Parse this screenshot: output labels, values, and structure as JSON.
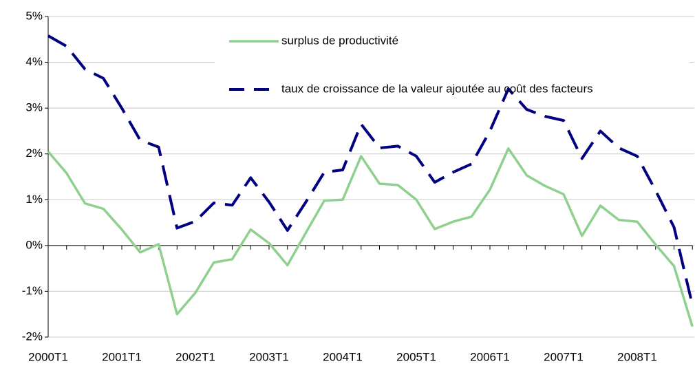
{
  "chart_data": {
    "type": "line",
    "categories": [
      "2000T1",
      null,
      null,
      null,
      "2001T1",
      null,
      null,
      null,
      "2002T1",
      null,
      null,
      null,
      "2003T1",
      null,
      null,
      null,
      "2004T1",
      null,
      null,
      null,
      "2005T1",
      null,
      null,
      null,
      "2006T1",
      null,
      null,
      null,
      "2007T1",
      null,
      null,
      null,
      "2008T1",
      null,
      null,
      null
    ],
    "series": [
      {
        "name": "surplus de productivité",
        "color": "#8fd08f",
        "dash": false,
        "values": [
          2.05,
          1.58,
          0.92,
          0.8,
          0.35,
          -0.15,
          0.03,
          -1.5,
          -1.03,
          -0.37,
          -0.3,
          0.35,
          0.05,
          -0.43,
          0.28,
          0.98,
          1.0,
          1.95,
          1.35,
          1.32,
          1.0,
          0.36,
          0.52,
          0.63,
          1.22,
          2.12,
          1.53,
          1.3,
          1.12,
          0.21,
          0.87,
          0.56,
          0.52,
          0.02,
          -0.45,
          -1.77
        ]
      },
      {
        "name": "taux de croissance de la valeur ajoutée au coût des facteurs",
        "color": "#000080",
        "dash": true,
        "values": [
          4.58,
          4.35,
          3.85,
          3.65,
          3.0,
          2.3,
          2.15,
          0.38,
          0.53,
          0.93,
          0.88,
          1.48,
          0.95,
          0.33,
          0.95,
          1.6,
          1.65,
          2.65,
          2.13,
          2.17,
          1.95,
          1.38,
          1.6,
          1.78,
          2.5,
          3.42,
          2.97,
          2.82,
          2.73,
          1.9,
          2.5,
          2.13,
          1.95,
          1.2,
          0.4,
          -1.3
        ]
      }
    ],
    "ylim": [
      -2,
      5
    ],
    "yticks": [
      {
        "value": -2,
        "label": "-2%"
      },
      {
        "value": -1,
        "label": "-1%"
      },
      {
        "value": 0,
        "label": "0%"
      },
      {
        "value": 1,
        "label": "1%"
      },
      {
        "value": 2,
        "label": "2%"
      },
      {
        "value": 3,
        "label": "3%"
      },
      {
        "value": 4,
        "label": "4%"
      },
      {
        "value": 5,
        "label": "5%"
      }
    ],
    "grid": true,
    "legend": "top"
  }
}
